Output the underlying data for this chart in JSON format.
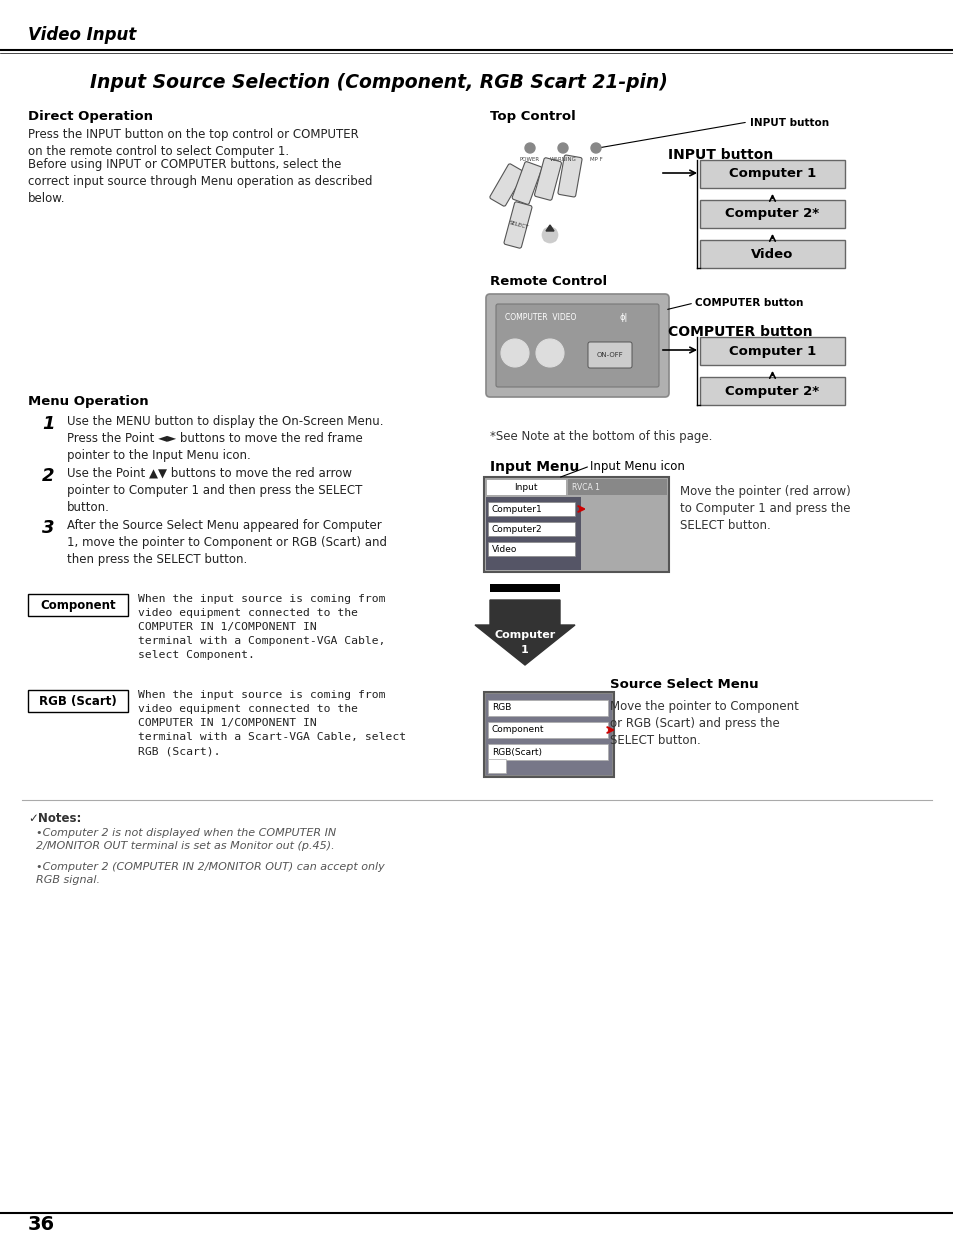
{
  "page_number": "36",
  "header_title": "Video Input",
  "section_title": "Input Source Selection (Component, RGB Scart 21-pin)",
  "bg_color": "#ffffff",
  "text_color": "#000000",
  "direct_op_title": "Direct Operation",
  "direct_op_text1": "Press the INPUT button on the top control or COMPUTER\non the remote control to select Computer 1.",
  "direct_op_text2": "Before using INPUT or COMPUTER buttons, select the\ncorrect input source through Menu operation as described\nbelow.",
  "top_control_title": "Top Control",
  "input_button_label": "INPUT button",
  "input_button_sequence": [
    "Computer 1",
    "Computer 2*",
    "Video"
  ],
  "remote_control_title": "Remote Control",
  "computer_button_label": "COMPUTER button",
  "computer_button_sequence": [
    "Computer 1",
    "Computer 2*"
  ],
  "note_text": "*See Note at the bottom of this page.",
  "input_menu_title": "Input Menu",
  "input_menu_icon_label": "Input Menu icon",
  "input_menu_items": [
    "Computer1",
    "Computer2",
    "Video"
  ],
  "input_menu_desc": "Move the pointer (red arrow)\nto Computer 1 and press the\nSELECT button.",
  "source_select_title": "Source Select Menu",
  "source_select_items": [
    "RGB",
    "Component",
    "RGB(Scart)"
  ],
  "source_select_desc": "Move the pointer to Component\nor RGB (Scart) and press the\nSELECT button.",
  "menu_op_title": "Menu Operation",
  "step1": "Use the MENU button to display the On-Screen Menu.\nPress the Point ◄► buttons to move the red frame\npointer to the Input Menu icon.",
  "step2": "Use the Point ▲▼ buttons to move the red arrow\npointer to Computer 1 and then press the SELECT\nbutton.",
  "step3": "After the Source Select Menu appeared for Computer\n1, move the pointer to Component or RGB (Scart) and\nthen press the SELECT button.",
  "component_label": "Component",
  "component_text": "When the input source is coming from\nvideo equipment connected to the\nCOMPUTER IN 1/COMPONENT IN\nterminal with a Component-VGA Cable,\nselect Component.",
  "rgb_scart_label": "RGB (Scart)",
  "rgb_scart_text": "When the input source is coming from\nvideo equipment connected to the\nCOMPUTER IN 1/COMPONENT IN\nterminal with a Scart-VGA Cable, select\nRGB (Scart).",
  "notes_title": "✓Notes:",
  "note1": "Computer 2 is not displayed when the COMPUTER IN\n2/MONITOR OUT terminal is set as Monitor out (p.45).",
  "note2": "Computer 2 (COMPUTER IN 2/MONITOR OUT) can accept only\nRGB signal."
}
